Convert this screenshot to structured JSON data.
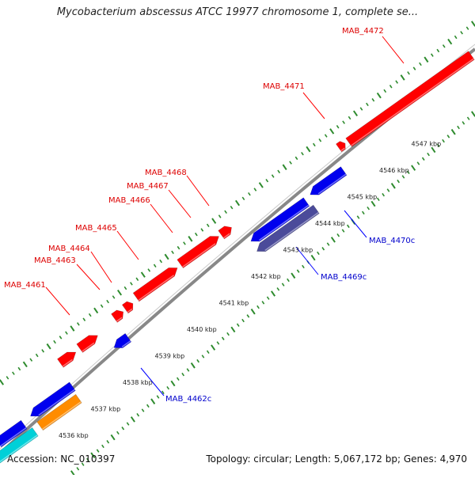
{
  "title": "Mycobacterium abscessus ATCC 19977 chromosome 1, complete se...",
  "footer": {
    "accession": "Accession: NC_010397",
    "topology": "Topology: circular;",
    "length": "Length: 5,067,172 bp;",
    "genes": "Genes: 4,970"
  },
  "ticks": [
    {
      "label": "4536 kbp",
      "pos": 0
    },
    {
      "label": "4537 kbp",
      "pos": 1
    },
    {
      "label": "4538 kbp",
      "pos": 2
    },
    {
      "label": "4539 kbp",
      "pos": 3
    },
    {
      "label": "4540 kbp",
      "pos": 4
    },
    {
      "label": "4541 kbp",
      "pos": 5
    },
    {
      "label": "4542 kbp",
      "pos": 6
    },
    {
      "label": "4543 kbp",
      "pos": 7
    },
    {
      "label": "4544 kbp",
      "pos": 8
    },
    {
      "label": "4545 kbp",
      "pos": 9
    },
    {
      "label": "4546 kbp",
      "pos": 10
    },
    {
      "label": "4547 kbp",
      "pos": 11
    }
  ],
  "forward_genes": [
    {
      "label": "MAB_4461",
      "color": "#ff0000"
    },
    {
      "label": "MAB_4463",
      "color": "#ff0000"
    },
    {
      "label": "MAB_4464",
      "color": "#ff0000"
    },
    {
      "label": "MAB_4465",
      "color": "#ff0000"
    },
    {
      "label": "MAB_4466",
      "color": "#ff0000"
    },
    {
      "label": "MAB_4467",
      "color": "#ff0000"
    },
    {
      "label": "MAB_4468",
      "color": "#ff0000"
    },
    {
      "label": "MAB_4471",
      "color": "#ff0000"
    },
    {
      "label": "MAB_4472",
      "color": "#ff0000"
    }
  ],
  "reverse_genes": [
    {
      "label": "MAB_4462c",
      "color": "#0000ee"
    },
    {
      "label": "MAB_4469c",
      "color": "#0000ee"
    },
    {
      "label": "MAB_4470c",
      "color": "#0000ee"
    }
  ],
  "colors": {
    "forward": "#ff0000",
    "reverse": "#0000ee",
    "reverse_dark": "#4b4b9a",
    "orange": "#ff8c00",
    "cyan": "#00d0d8",
    "backbone": "#888888",
    "tick": "#2e8b2e",
    "label_forward": "#dd0000",
    "label_reverse": "#0000cc"
  }
}
